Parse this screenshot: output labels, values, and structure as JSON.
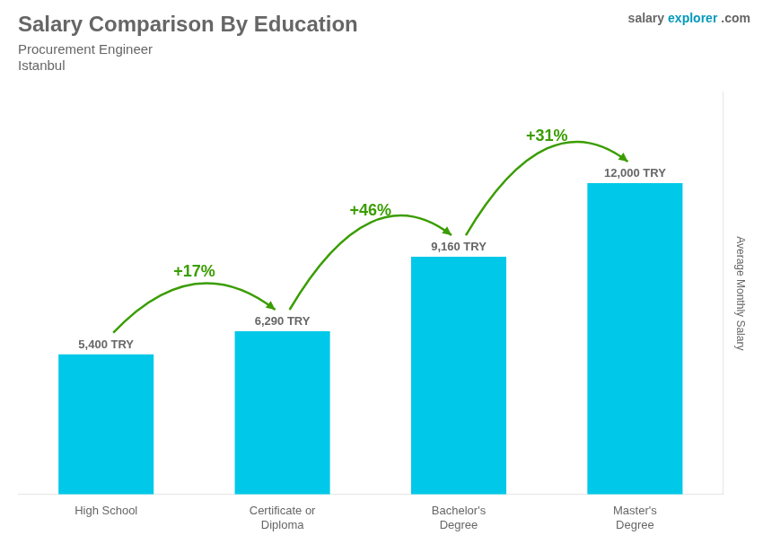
{
  "chart_data": {
    "type": "bar",
    "title": "Salary Comparison By Education",
    "subtitle": [
      "Procurement Engineer",
      "Istanbul"
    ],
    "y_label": "Average Monthly Salary",
    "categories": [
      "High School",
      "Certificate or\nDiploma",
      "Bachelor's\nDegree",
      "Master's\nDegree"
    ],
    "values": [
      5400,
      6290,
      9160,
      12000
    ],
    "value_labels": [
      "5,400 TRY",
      "6,290 TRY",
      "9,160 TRY",
      "12,000 TRY"
    ],
    "data_labels": true,
    "color": "#00c8e8",
    "ylim": [
      0,
      15500
    ],
    "tick_labels": "x",
    "grid": false,
    "annotations": [
      {
        "text": "+17%",
        "from": "High School",
        "to": "Certificate or\nDiploma"
      },
      {
        "text": "+46%",
        "from": "Certificate or\nDiploma",
        "to": "Bachelor's\nDegree"
      },
      {
        "text": "+31%",
        "from": "Bachelor's\nDegree",
        "to": "Master's\nDegree"
      },
      {
        "text": "salary"
      },
      {
        "text": "explorer"
      },
      {
        "text": ".com"
      }
    ]
  }
}
